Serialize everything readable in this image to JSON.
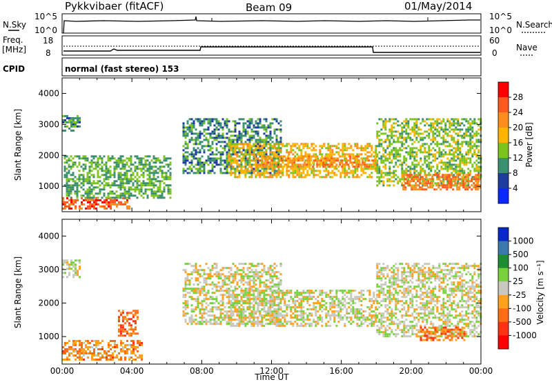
{
  "header": {
    "station": "Pykkvibaer (fitACF)",
    "beam": "Beam 09",
    "date": "01/May/2014"
  },
  "nsky_panel": {
    "label": "N.Sky",
    "right_label": "N.Search",
    "ticks": [
      "10^5",
      "10^0"
    ],
    "right_ticks": [
      "10^5",
      "10^0"
    ]
  },
  "freq_panel": {
    "label_line1": "Freq.",
    "label_line2": "[MHz]",
    "ticks": [
      "18",
      "8"
    ],
    "right_label": "Nave",
    "right_ticks": [
      "60",
      "0"
    ]
  },
  "cpid_panel": {
    "label": "CPID",
    "text": "normal (fast stereo) 153"
  },
  "chart_data": [
    {
      "type": "heatmap",
      "title": "",
      "ylabel": "Slant Range [km]",
      "xlabel": "",
      "ylim": [
        180,
        4500
      ],
      "xlim_hours": [
        0,
        24
      ],
      "yticks": [
        "1000",
        "2000",
        "3000",
        "4000"
      ],
      "colorbar_label": "Power [dB]",
      "colorbar_ticks": [
        "28",
        "24",
        "20",
        "16",
        "12",
        "8",
        "4"
      ],
      "colorbar_colors": [
        "#ff0000",
        "#ff5a1e",
        "#ff8c1e",
        "#ffb400",
        "#7dc31e",
        "#3a8f6e",
        "#1e3ca0",
        "#0a28ff"
      ],
      "colorbar_range": [
        0,
        32
      ],
      "regions": [
        {
          "name": "early-near",
          "t": [
            0.0,
            3.9
          ],
          "r": [
            300,
            650
          ],
          "value": 26
        },
        {
          "name": "early-scatter",
          "t": [
            0.1,
            6.2
          ],
          "r": [
            650,
            2000
          ],
          "value": 12
        },
        {
          "name": "early-top",
          "t": [
            0.0,
            1.0
          ],
          "r": [
            2800,
            3300
          ],
          "value": 10
        },
        {
          "name": "arc",
          "t": [
            6.9,
            12.5
          ],
          "r": [
            1400,
            3200
          ],
          "value": 10
        },
        {
          "name": "main-band",
          "t": [
            9.5,
            18.0
          ],
          "r": [
            1300,
            2400
          ],
          "value": 18
        },
        {
          "name": "main-core",
          "t": [
            11.0,
            18.0
          ],
          "r": [
            1600,
            2000
          ],
          "value": 22
        },
        {
          "name": "late-band",
          "t": [
            18.0,
            24.0
          ],
          "r": [
            1000,
            3200
          ],
          "value": 14
        },
        {
          "name": "late-core",
          "t": [
            19.5,
            24.0
          ],
          "r": [
            900,
            1400
          ],
          "value": 24
        }
      ]
    },
    {
      "type": "heatmap",
      "title": "",
      "ylabel": "Slant Range [km]",
      "xlabel": "Time UT",
      "ylim": [
        180,
        4500
      ],
      "xlim_hours": [
        0,
        24
      ],
      "yticks": [
        "1000",
        "2000",
        "3000",
        "4000"
      ],
      "xticks": [
        "00:00",
        "04:00",
        "08:00",
        "12:00",
        "16:00",
        "20:00",
        "00:00"
      ],
      "colorbar_label": "Velocity [m s⁻¹]",
      "colorbar_ticks": [
        "1000",
        "500",
        "100",
        "25",
        "-25",
        "-100",
        "-500",
        "-1000"
      ],
      "colorbar_colors": [
        "#0a28c8",
        "#3c78aa",
        "#1e8c32",
        "#78d23c",
        "#c8c8be",
        "#ffa01e",
        "#ff6e14",
        "#ff3214",
        "#ff0000"
      ],
      "colorbar_range": [
        -1200,
        1200
      ],
      "regions": [
        {
          "name": "early-near",
          "t": [
            0.0,
            4.6
          ],
          "r": [
            300,
            900
          ],
          "value": -400
        },
        {
          "name": "early-mid",
          "t": [
            3.2,
            4.3
          ],
          "r": [
            1000,
            1800
          ],
          "value": -600
        },
        {
          "name": "early-top",
          "t": [
            0.0,
            1.0
          ],
          "r": [
            2800,
            3300
          ],
          "value": 0
        },
        {
          "name": "arc",
          "t": [
            6.9,
            12.5
          ],
          "r": [
            1400,
            3200
          ],
          "value": 0
        },
        {
          "name": "main-band",
          "t": [
            9.5,
            18.0
          ],
          "r": [
            1300,
            2400
          ],
          "value": 0
        },
        {
          "name": "late-band",
          "t": [
            18.0,
            24.0
          ],
          "r": [
            1000,
            3200
          ],
          "value": 0
        },
        {
          "name": "late-mixed",
          "t": [
            20.5,
            23.0
          ],
          "r": [
            900,
            1300
          ],
          "value": -500
        }
      ]
    }
  ]
}
